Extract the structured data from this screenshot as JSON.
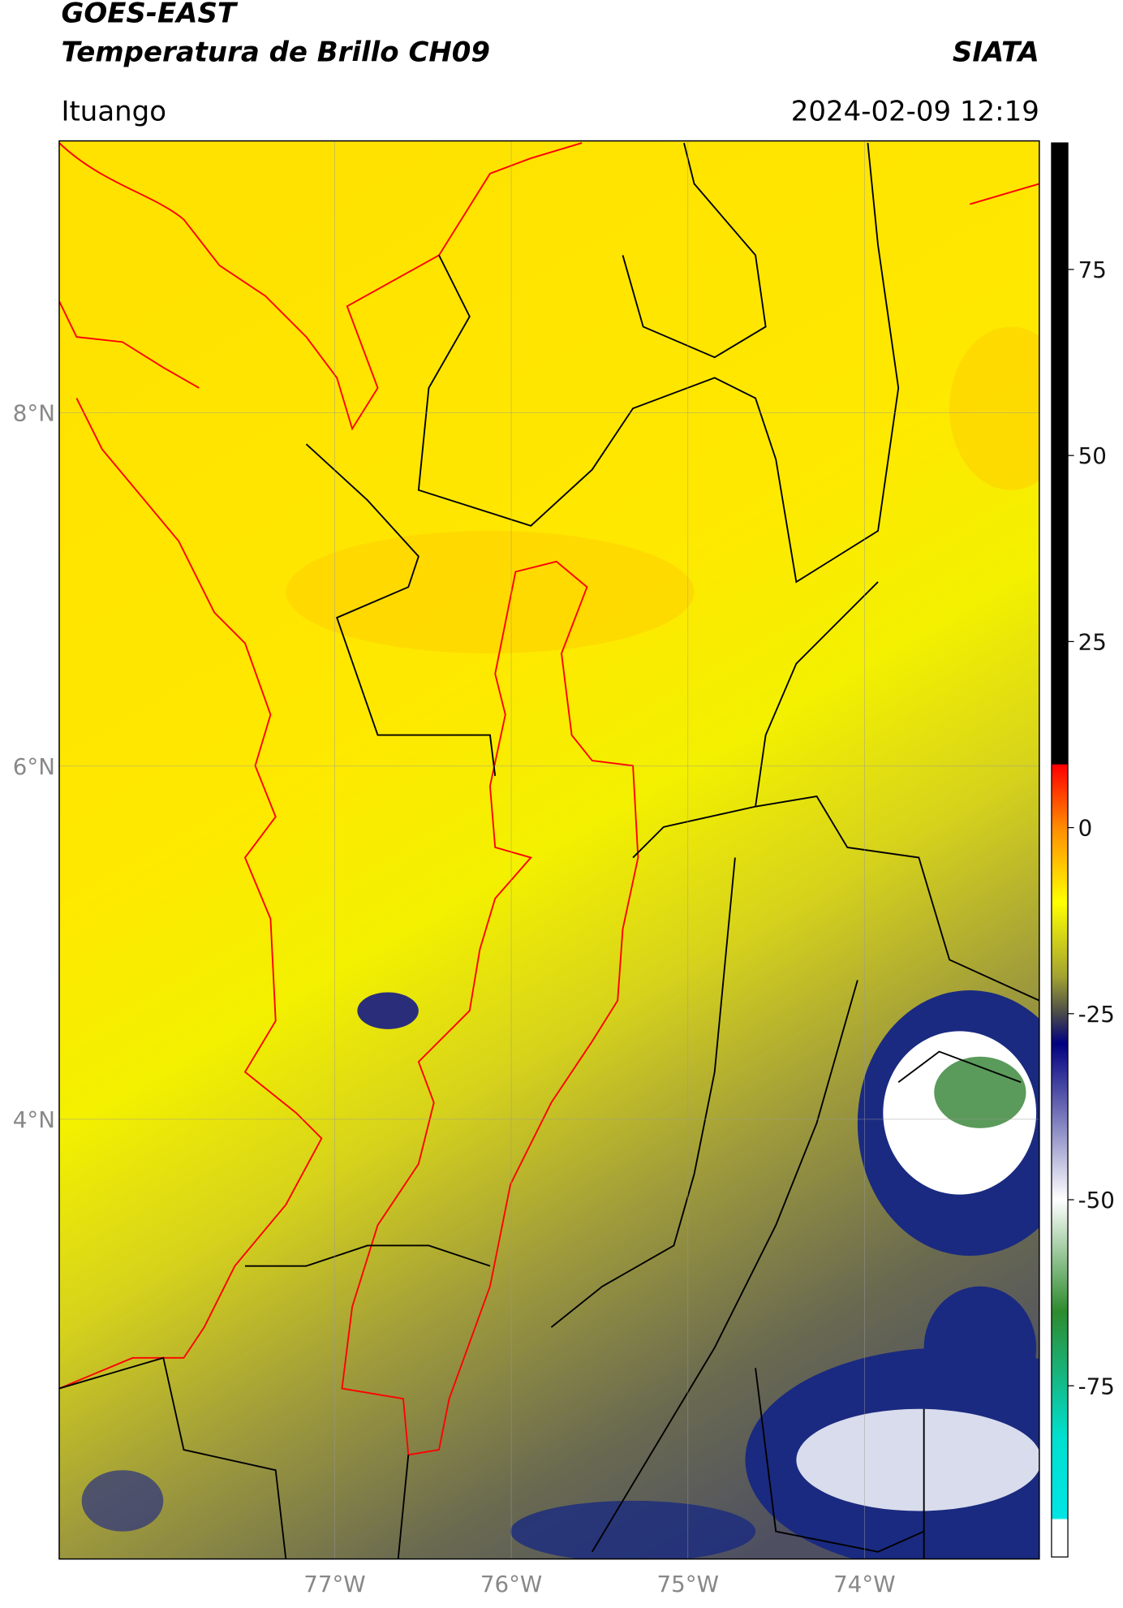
{
  "header": {
    "title": "GOES-EAST",
    "subtitle": "Temperatura de Brillo CH09",
    "agency": "SIATA",
    "location": "Ituango",
    "datetime": "2024-02-09 12:19"
  },
  "map": {
    "lonlim": [
      -78.56,
      -73.01
    ],
    "latlim": [
      1.51,
      9.54
    ],
    "grid": true,
    "lonticks": [
      {
        "value": -77,
        "label": "77°W"
      },
      {
        "value": -76,
        "label": "76°W"
      },
      {
        "value": -75,
        "label": "75°W"
      },
      {
        "value": -74,
        "label": "74°W"
      }
    ],
    "latticks": [
      {
        "value": 8,
        "label": "8°N"
      },
      {
        "value": 6,
        "label": "6°N"
      },
      {
        "value": 4,
        "label": "4°N"
      }
    ]
  },
  "colorbar": {
    "lim": [
      -98,
      92
    ],
    "ticks": [
      75,
      50,
      25,
      0,
      -25,
      -50,
      -75
    ],
    "stops": [
      {
        "value": 92,
        "color": "#000000"
      },
      {
        "value": 8.6,
        "color": "#000000"
      },
      {
        "value": 8.4,
        "color": "#ff0000"
      },
      {
        "value": 0,
        "color": "#ff8c00"
      },
      {
        "value": -10,
        "color": "#ffff00"
      },
      {
        "value": -20,
        "color": "#a3a332"
      },
      {
        "value": -25,
        "color": "#4a4a4a"
      },
      {
        "value": -29,
        "color": "#000080"
      },
      {
        "value": -50,
        "color": "#ffffff"
      },
      {
        "value": -65,
        "color": "#2e8b2e"
      },
      {
        "value": -82,
        "color": "#00e0d0"
      },
      {
        "value": -92.8,
        "color": "#00e5e5"
      },
      {
        "value": -93,
        "color": "#ffffff"
      },
      {
        "value": -98,
        "color": "#ffffff"
      }
    ]
  }
}
